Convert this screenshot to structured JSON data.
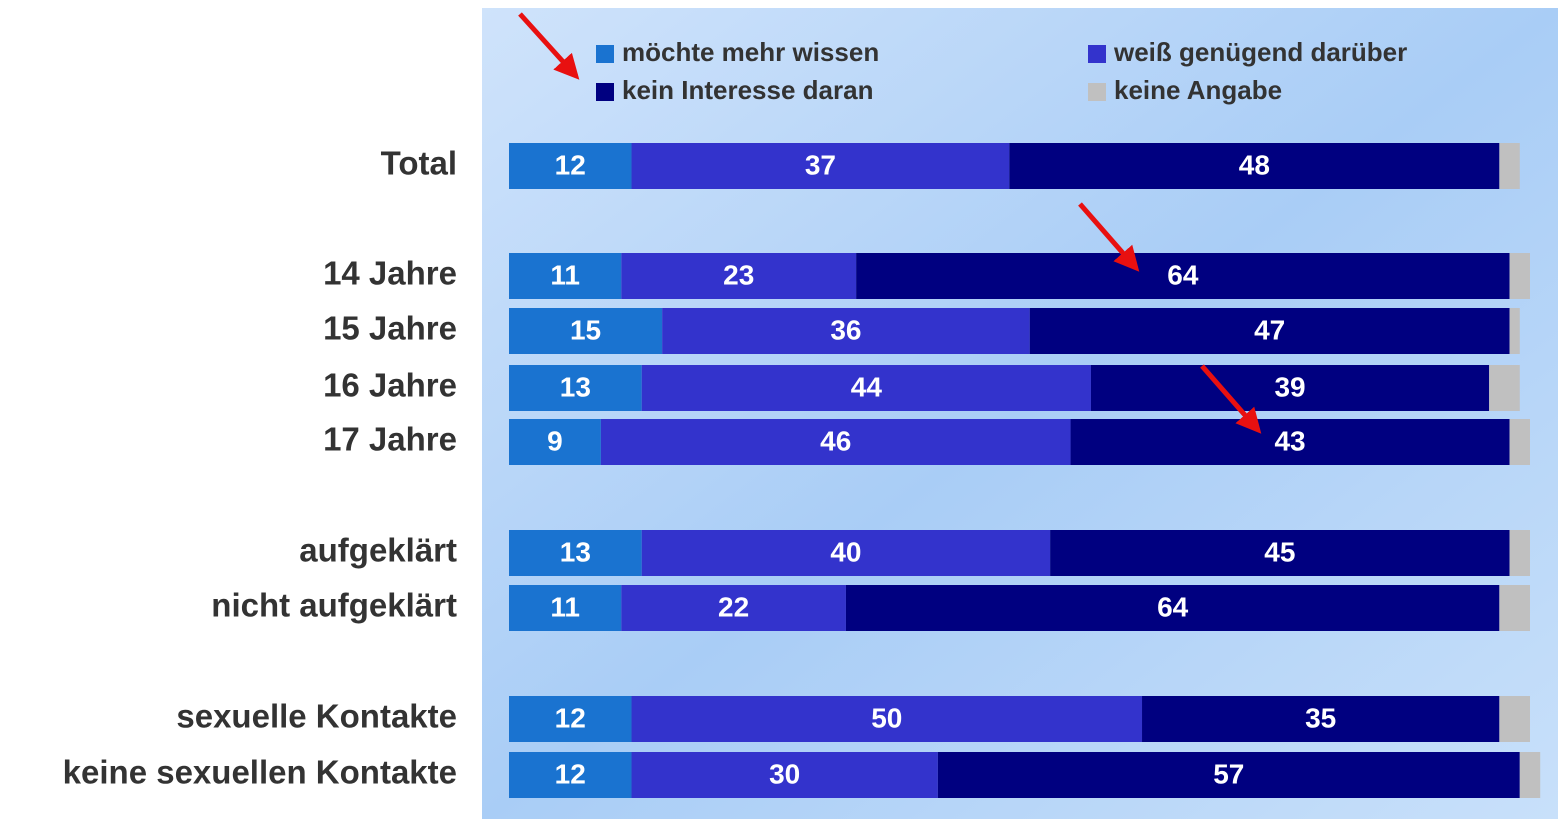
{
  "chart_data": {
    "type": "stacked-bar",
    "categories": [
      "Total",
      "14 Jahre",
      "15 Jahre",
      "16 Jahre",
      "17 Jahre",
      "aufgeklärt",
      "nicht aufgeklärt",
      "sexuelle Kontakte",
      "keine sexuellen Kontakte"
    ],
    "series": [
      {
        "name": "möchte mehr wissen",
        "color": "#1a73d0",
        "values": [
          12,
          11,
          15,
          13,
          9,
          13,
          11,
          12,
          12
        ]
      },
      {
        "name": "weiß genügend darüber",
        "color": "#3333cc",
        "values": [
          37,
          23,
          36,
          44,
          46,
          40,
          22,
          50,
          30
        ]
      },
      {
        "name": "kein Interesse daran",
        "color": "#000080",
        "values": [
          48,
          64,
          47,
          39,
          43,
          45,
          64,
          35,
          57
        ]
      },
      {
        "name": "keine Angabe",
        "color": "#c0c0c0",
        "values": [
          2,
          2,
          1,
          3,
          2,
          2,
          3,
          3,
          2
        ]
      }
    ],
    "value_labels_shown": [
      true,
      true,
      true,
      false
    ],
    "xlim": [
      0,
      100
    ]
  }
}
